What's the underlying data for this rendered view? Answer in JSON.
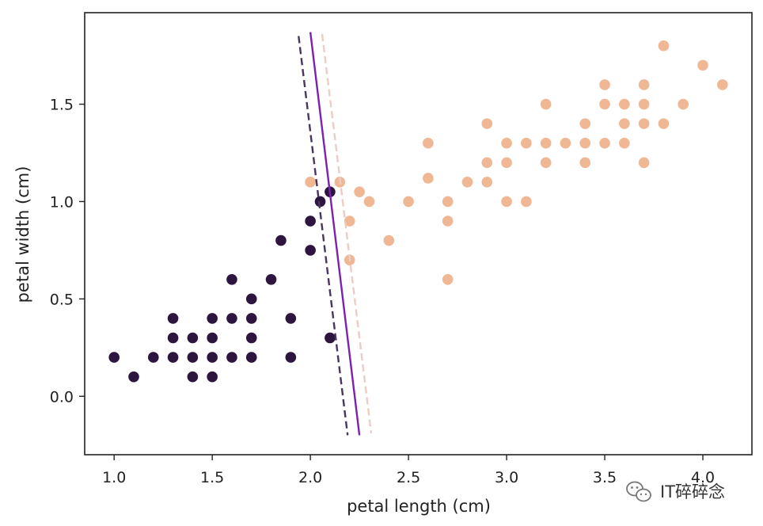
{
  "chart_data": {
    "type": "scatter",
    "xlabel": "petal length (cm)",
    "ylabel": "petal width (cm)",
    "xlim": [
      0.85,
      4.25
    ],
    "ylim": [
      -0.3,
      1.97
    ],
    "xticks": [
      1.0,
      1.5,
      2.0,
      2.5,
      3.0,
      3.5,
      4.0
    ],
    "xtick_labels": [
      "1.0",
      "1.5",
      "2.0",
      "2.5",
      "3.0",
      "3.5",
      "4.0"
    ],
    "yticks": [
      0.0,
      0.5,
      1.0,
      1.5
    ],
    "ytick_labels": [
      "0.0",
      "0.5",
      "1.0",
      "1.5"
    ],
    "grid": false,
    "series": [
      {
        "color": "#2d1540",
        "points": [
          [
            1.0,
            0.2
          ],
          [
            1.1,
            0.1
          ],
          [
            1.2,
            0.2
          ],
          [
            1.3,
            0.2
          ],
          [
            1.3,
            0.3
          ],
          [
            1.3,
            0.4
          ],
          [
            1.4,
            0.1
          ],
          [
            1.4,
            0.2
          ],
          [
            1.4,
            0.3
          ],
          [
            1.5,
            0.1
          ],
          [
            1.5,
            0.2
          ],
          [
            1.5,
            0.3
          ],
          [
            1.5,
            0.4
          ],
          [
            1.6,
            0.2
          ],
          [
            1.6,
            0.4
          ],
          [
            1.6,
            0.6
          ],
          [
            1.7,
            0.2
          ],
          [
            1.7,
            0.3
          ],
          [
            1.7,
            0.4
          ],
          [
            1.7,
            0.5
          ],
          [
            1.8,
            0.6
          ],
          [
            1.85,
            0.8
          ],
          [
            1.9,
            0.2
          ],
          [
            1.9,
            0.4
          ],
          [
            2.0,
            0.75
          ],
          [
            2.0,
            0.9
          ],
          [
            2.05,
            1.0
          ],
          [
            2.1,
            1.05
          ],
          [
            2.1,
            0.3
          ]
        ]
      },
      {
        "color": "#efb794",
        "points": [
          [
            2.0,
            1.1
          ],
          [
            2.15,
            1.1
          ],
          [
            2.2,
            0.9
          ],
          [
            2.2,
            0.7
          ],
          [
            2.25,
            1.05
          ],
          [
            2.3,
            1.0
          ],
          [
            2.4,
            0.8
          ],
          [
            2.5,
            1.0
          ],
          [
            2.6,
            1.3
          ],
          [
            2.6,
            1.12
          ],
          [
            2.7,
            1.0
          ],
          [
            2.7,
            0.9
          ],
          [
            2.7,
            0.6
          ],
          [
            2.8,
            1.1
          ],
          [
            2.9,
            1.4
          ],
          [
            2.9,
            1.2
          ],
          [
            2.9,
            1.1
          ],
          [
            3.0,
            1.3
          ],
          [
            3.0,
            1.2
          ],
          [
            3.0,
            1.0
          ],
          [
            3.1,
            1.3
          ],
          [
            3.1,
            1.0
          ],
          [
            3.2,
            1.5
          ],
          [
            3.2,
            1.3
          ],
          [
            3.2,
            1.2
          ],
          [
            3.3,
            1.3
          ],
          [
            3.4,
            1.4
          ],
          [
            3.4,
            1.3
          ],
          [
            3.4,
            1.2
          ],
          [
            3.5,
            1.6
          ],
          [
            3.5,
            1.5
          ],
          [
            3.5,
            1.3
          ],
          [
            3.6,
            1.5
          ],
          [
            3.6,
            1.4
          ],
          [
            3.6,
            1.3
          ],
          [
            3.7,
            1.6
          ],
          [
            3.7,
            1.5
          ],
          [
            3.7,
            1.4
          ],
          [
            3.7,
            1.2
          ],
          [
            3.8,
            1.8
          ],
          [
            3.8,
            1.4
          ],
          [
            3.9,
            1.5
          ],
          [
            4.0,
            1.7
          ],
          [
            4.1,
            1.6
          ]
        ]
      }
    ],
    "lines": [
      {
        "style": "dashed",
        "color": "#4a3560",
        "from": [
          1.94,
          1.85
        ],
        "to": [
          2.19,
          -0.2
        ]
      },
      {
        "style": "solid",
        "color": "#7b22b0",
        "from": [
          2.0,
          1.87
        ],
        "to": [
          2.25,
          -0.2
        ]
      },
      {
        "style": "dashed",
        "color": "#eccdc6",
        "from": [
          2.06,
          1.86
        ],
        "to": [
          2.31,
          -0.19
        ]
      }
    ]
  },
  "watermark": {
    "text": "IT碎碎念",
    "icon": "wechat-icon"
  }
}
